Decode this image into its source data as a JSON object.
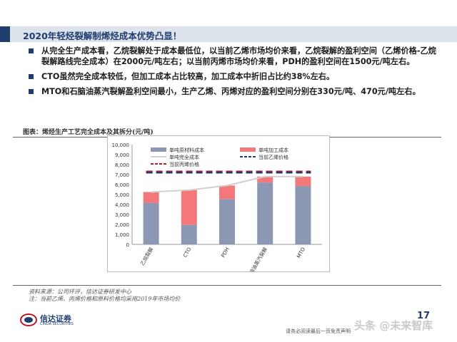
{
  "title": "2020年轻烃裂解制烯烃成本优势凸显！",
  "bullets": [
    "从完全生产成本看，乙烷裂解处于成本最低位，以当前乙烯市场均价来看，乙烷裂解的盈利空间（乙烯价格-乙烷裂解路线完全成本）在2000元/吨左右；以当前丙烯市场均价来看，PDH的盈利空间在1500元/吨左右。",
    "CTO虽然完全成本较低，但加工成本占比较高，加工成本中折旧占比约38%左右。",
    "MTO和石脑油蒸汽裂解盈利空间最小，生产乙烯、丙烯对应的盈利空间分别在330元/吨、470元/吨左右。"
  ],
  "figure_caption": "图表：烯烃生产工艺完全成本及其拆分(元/吨)",
  "source_lines": [
    "资料来源：公司环评，信达证券研发中心",
    "注：当前乙烯、丙烯价格和原料价格均采用2019年市场均价"
  ],
  "logo_text": "信达证券",
  "logo_sub": "CINDA SECURITIES",
  "page_number": "17",
  "footer_text": "请务必阅读最后一页免责声明",
  "watermark": "头条 @未来智库",
  "colors": {
    "material": "#8b97b3",
    "processing": "#f4777a",
    "full_cost_line": "#d0d0d0",
    "ethylene_price": "#1f3d6e",
    "propylene_price": "#c0182a"
  },
  "chart_data": {
    "type": "bar",
    "categories": [
      "乙烷裂解",
      "CTO",
      "PDH",
      "石脑油蒸汽裂解",
      "MTO"
    ],
    "ylim": [
      0,
      10000
    ],
    "yticks": [
      "0",
      "1,000",
      "2,000",
      "3,000",
      "4,000",
      "5,000",
      "6,000",
      "7,000",
      "8,000",
      "9,000",
      "10,000"
    ],
    "series": [
      {
        "name": "单吨原材料成本",
        "values": [
          4150,
          1950,
          4550,
          6200,
          5850
        ]
      },
      {
        "name": "单吨加工成本",
        "values": [
          1100,
          3500,
          1350,
          600,
          950
        ]
      }
    ],
    "full_cost": {
      "name": "单吨完全成本",
      "values": [
        5250,
        5450,
        5900,
        6800,
        6800
      ]
    },
    "ethylene_price": {
      "name": "当前乙烯价格",
      "value": 7200
    },
    "propylene_price": {
      "name": "当前丙烯价格",
      "value": 7300
    },
    "grid": false
  }
}
